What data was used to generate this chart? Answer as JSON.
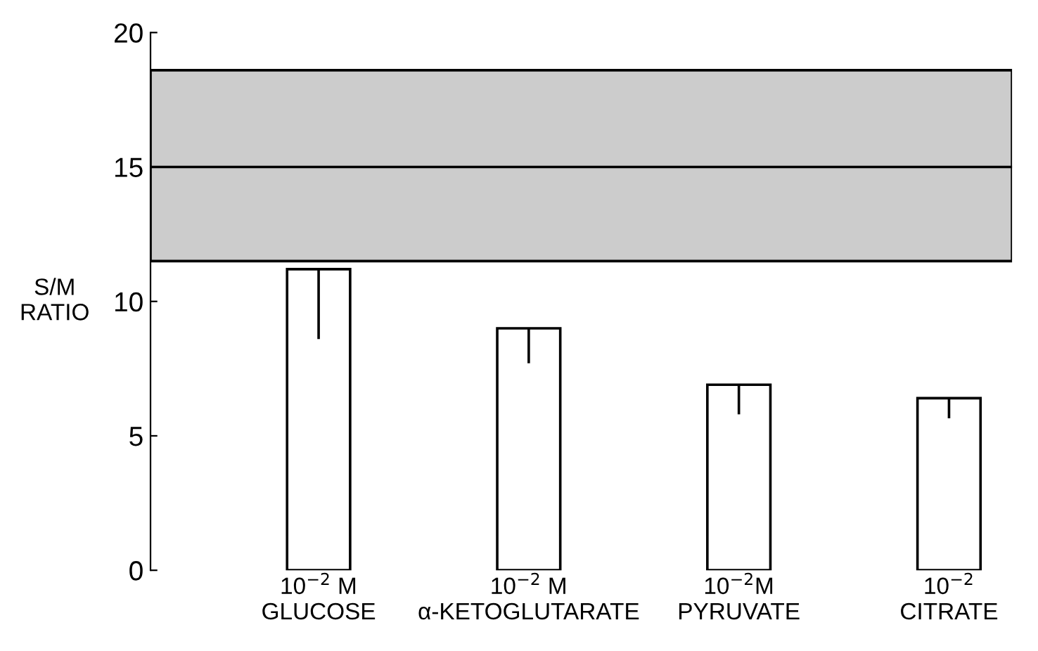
{
  "chart_data": {
    "type": "bar",
    "categories": [
      "10$^{−2}$ M\nGLUCOSE",
      "10$^{−2}$ M\nα-KETOGLUTARATE",
      "10$^{−2}$M\nPYRUVATE",
      "10$^{−2}$\nCITRATE"
    ],
    "values": [
      11.2,
      9.0,
      6.9,
      6.4
    ],
    "errors": [
      [
        8.6,
        11.2
      ],
      [
        7.7,
        9.0
      ],
      [
        5.8,
        6.9
      ],
      [
        5.65,
        6.4
      ]
    ],
    "color": "#ffffff",
    "ylabel": "S/M\nRATIO",
    "ylim": [
      0,
      20
    ],
    "yticks": [
      0,
      5,
      10,
      15,
      20
    ],
    "bands": [
      {
        "axis": "y",
        "from": 11.5,
        "to": 18.6,
        "color": "#cccccc"
      }
    ],
    "ref_lines": [
      {
        "axis": "y",
        "value": 15.0,
        "color": "#000000",
        "line_style": "solid"
      }
    ],
    "grid": false,
    "legend": false
  }
}
